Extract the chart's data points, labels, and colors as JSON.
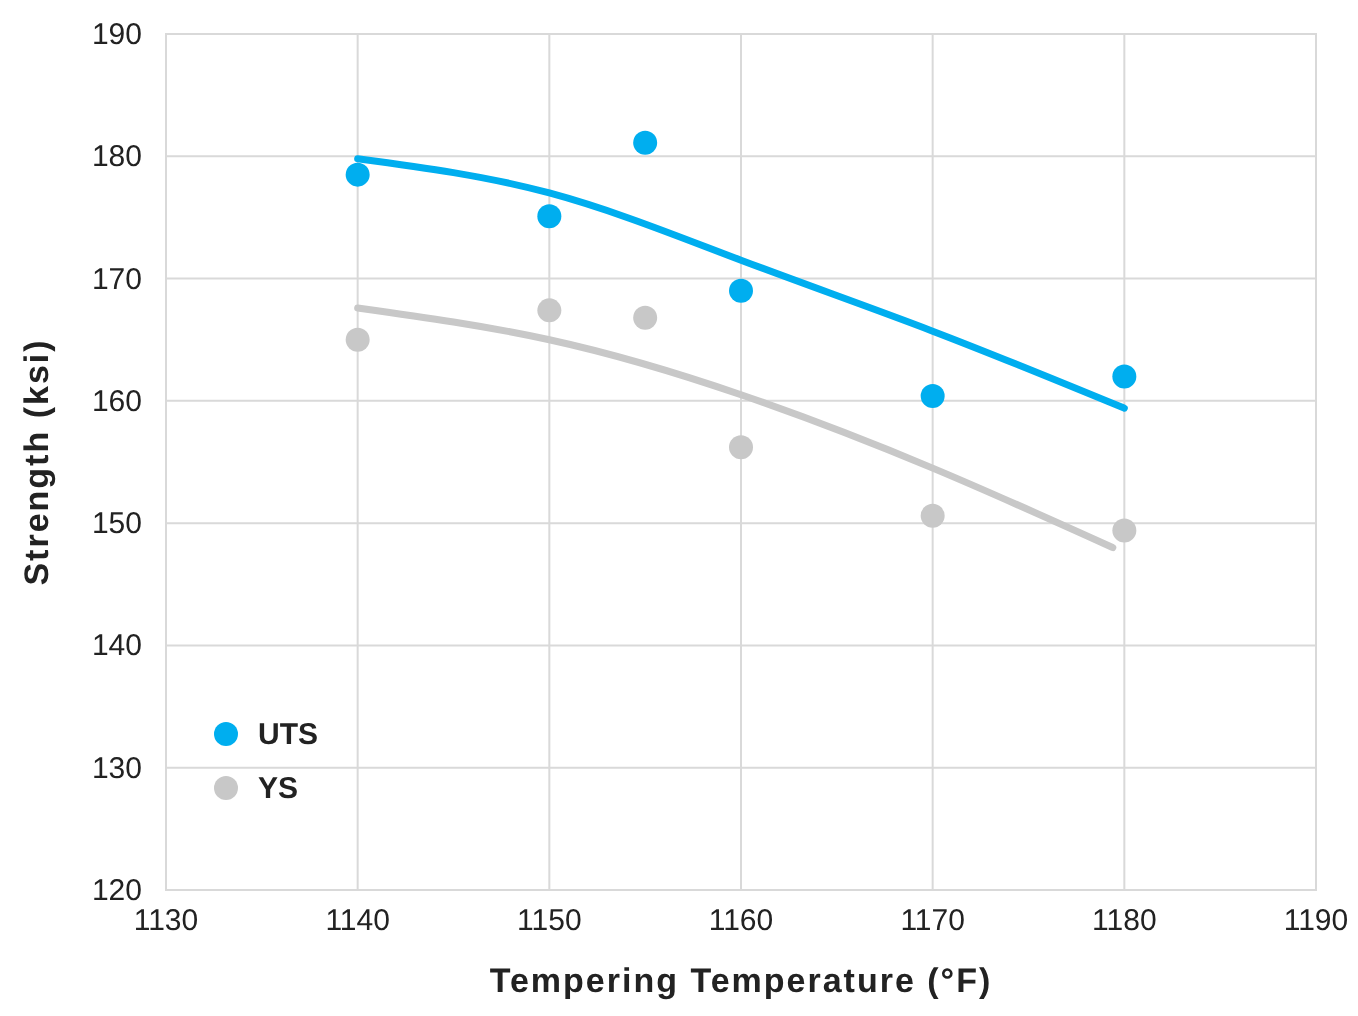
{
  "chart_data": {
    "type": "scatter",
    "xlabel": "Tempering Temperature (°F)",
    "ylabel": "Strength (ksi)",
    "x": [
      1140,
      1150,
      1155,
      1160,
      1170,
      1180
    ],
    "xlim": [
      1130,
      1190
    ],
    "xticks": [
      1130,
      1140,
      1150,
      1160,
      1170,
      1180,
      1190
    ],
    "ylim": [
      120,
      190
    ],
    "yticks": [
      120,
      130,
      140,
      150,
      160,
      170,
      180,
      190
    ],
    "grid": true,
    "legend": "bottom left",
    "marker": "circle",
    "series": [
      {
        "name": "UTS",
        "color": "#00aeef",
        "values": [
          178.5,
          175.1,
          181.1,
          169,
          160.4,
          162
        ]
      },
      {
        "name": "YS",
        "color": "#c8c8c8",
        "values": [
          165,
          167.4,
          166.8,
          156.2,
          150.6,
          149.4
        ]
      },
      {
        "type": "line",
        "marker": "none",
        "color": "#00aeef",
        "x": [
          1140,
          1150,
          1160,
          1170,
          1180
        ],
        "values": [
          179.8,
          177,
          171.5,
          165.7,
          159.4
        ]
      },
      {
        "type": "line",
        "marker": "none",
        "color": "#c8c8c8",
        "x": [
          1140,
          1150,
          1160,
          1170,
          1179.4
        ],
        "values": [
          167.6,
          165,
          160.5,
          154.5,
          148
        ]
      }
    ]
  }
}
